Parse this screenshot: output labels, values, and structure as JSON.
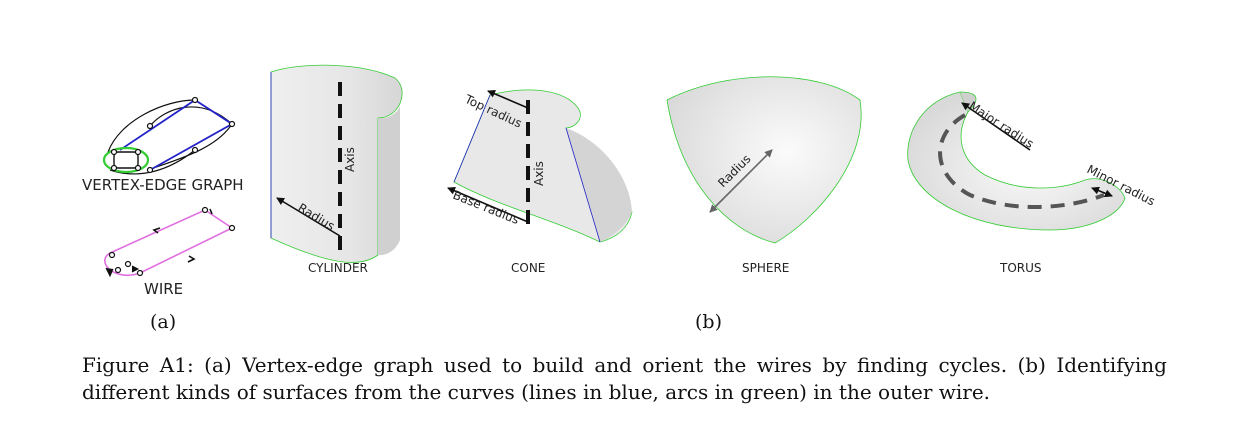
{
  "figure": {
    "panel_a": {
      "label": "(a)",
      "vertex_edge_graph_title": "VERTEX-EDGE GRAPH",
      "wire_title": "WIRE"
    },
    "panel_b": {
      "label": "(b)",
      "surfaces": [
        {
          "name": "CYLINDER",
          "annotations": [
            "Axis",
            "Radius"
          ]
        },
        {
          "name": "CONE",
          "annotations": [
            "Top radius",
            "Axis",
            "Base radius"
          ]
        },
        {
          "name": "SPHERE",
          "annotations": [
            "Radius"
          ]
        },
        {
          "name": "TORUS",
          "annotations": [
            "Major radius",
            "Minor radius"
          ]
        }
      ]
    },
    "colors": {
      "line_edges": "#2323c8",
      "arc_edges": "#33cc33",
      "wire": "#e070e0",
      "surface_fill": "#e6e6e6"
    },
    "caption": "Figure A1: (a) Vertex-edge graph used to build and orient the wires by finding cycles. (b) Identifying different kinds of surfaces from the curves (lines in blue, arcs in green) in the outer wire."
  }
}
